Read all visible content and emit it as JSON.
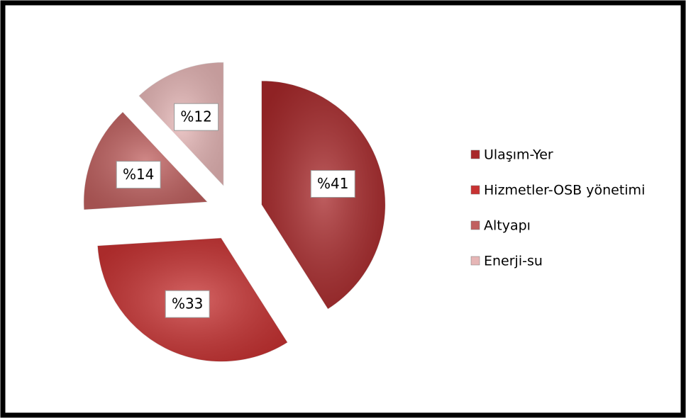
{
  "chart_data": {
    "type": "pie",
    "categories": [
      "Ulaşım-Yer",
      "Hizmetler-OSB yönetimi",
      "Altyapı",
      "Enerji-su"
    ],
    "values": [
      41,
      33,
      14,
      12
    ],
    "value_labels": [
      "%41",
      "%33",
      "%14",
      "%12"
    ],
    "colors": [
      "#a8282a",
      "#c83232",
      "#c0605f",
      "#e6b6b6"
    ],
    "legend": "right"
  }
}
